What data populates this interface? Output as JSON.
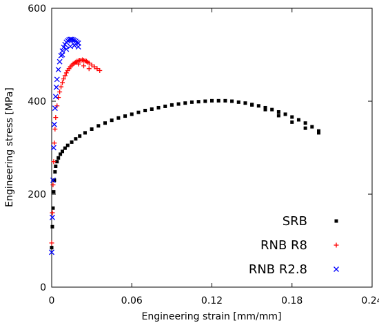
{
  "chart_data": {
    "type": "scatter",
    "title": "",
    "xlabel": "Engineering strain [mm/mm]",
    "ylabel": "Engineering stress [MPa]",
    "xlim": [
      0,
      0.24
    ],
    "ylim": [
      0,
      600
    ],
    "x_ticks": [
      "0",
      "0.06",
      "0.12",
      "0.18",
      "0.24"
    ],
    "y_ticks": [
      "0",
      "200",
      "400",
      "600"
    ],
    "x_tick_values": [
      0,
      0.06,
      0.12,
      0.18,
      0.24
    ],
    "y_tick_values": [
      0,
      200,
      400,
      600
    ],
    "grid": false,
    "legend_position": "bottom-right",
    "series": [
      {
        "name": "SRB",
        "marker": "square",
        "color": "#000000",
        "x": [
          0.0,
          0.0005,
          0.001,
          0.0015,
          0.002,
          0.0025,
          0.003,
          0.004,
          0.005,
          0.0065,
          0.008,
          0.01,
          0.012,
          0.015,
          0.018,
          0.021,
          0.025,
          0.03,
          0.035,
          0.04,
          0.045,
          0.05,
          0.055,
          0.06,
          0.065,
          0.07,
          0.075,
          0.08,
          0.085,
          0.09,
          0.095,
          0.1,
          0.105,
          0.11,
          0.115,
          0.12,
          0.125,
          0.13,
          0.135,
          0.14,
          0.145,
          0.15,
          0.155,
          0.16,
          0.165,
          0.17,
          0.175,
          0.18,
          0.185,
          0.19,
          0.195,
          0.2,
          0.15,
          0.16,
          0.17,
          0.18,
          0.19,
          0.2
        ],
        "y": [
          85,
          130,
          170,
          205,
          230,
          248,
          260,
          270,
          278,
          286,
          292,
          299,
          305,
          312,
          319,
          325,
          332,
          340,
          347,
          353,
          359,
          364,
          368,
          372,
          376,
          380,
          383,
          386,
          389,
          392,
          394,
          396,
          398,
          399,
          400,
          401,
          401,
          401,
          400,
          398,
          396,
          393,
          390,
          386,
          382,
          377,
          372,
          366,
          360,
          353,
          345,
          336,
          392,
          382,
          369,
          355,
          342,
          332
        ]
      },
      {
        "name": "RNB R8",
        "marker": "plus",
        "color": "#ff0000",
        "x": [
          0.0,
          0.0005,
          0.001,
          0.0015,
          0.002,
          0.0025,
          0.003,
          0.004,
          0.005,
          0.006,
          0.007,
          0.008,
          0.009,
          0.01,
          0.011,
          0.012,
          0.013,
          0.014,
          0.015,
          0.016,
          0.017,
          0.018,
          0.019,
          0.02,
          0.021,
          0.022,
          0.023,
          0.024,
          0.025,
          0.026,
          0.027,
          0.028,
          0.03,
          0.032,
          0.034,
          0.036,
          0.02,
          0.024,
          0.028
        ],
        "y": [
          95,
          160,
          220,
          270,
          310,
          340,
          365,
          390,
          408,
          420,
          431,
          440,
          448,
          455,
          461,
          466,
          470,
          474,
          477,
          480,
          482,
          484,
          486,
          487,
          488,
          488,
          489,
          488,
          487,
          486,
          484,
          482,
          478,
          474,
          470,
          466,
          480,
          476,
          470
        ]
      },
      {
        "name": "RNB R2.8",
        "marker": "cross",
        "color": "#0000ff",
        "x": [
          0.0,
          0.0005,
          0.001,
          0.0015,
          0.002,
          0.0025,
          0.003,
          0.0035,
          0.004,
          0.005,
          0.006,
          0.007,
          0.008,
          0.009,
          0.01,
          0.011,
          0.012,
          0.013,
          0.014,
          0.015,
          0.016,
          0.017,
          0.018,
          0.019,
          0.02,
          0.008,
          0.011,
          0.014,
          0.017,
          0.02
        ],
        "y": [
          75,
          150,
          230,
          300,
          350,
          385,
          410,
          430,
          447,
          468,
          485,
          498,
          508,
          516,
          522,
          527,
          530,
          532,
          533,
          533,
          532,
          531,
          529,
          527,
          525,
          500,
          512,
          518,
          520,
          517
        ]
      }
    ]
  }
}
